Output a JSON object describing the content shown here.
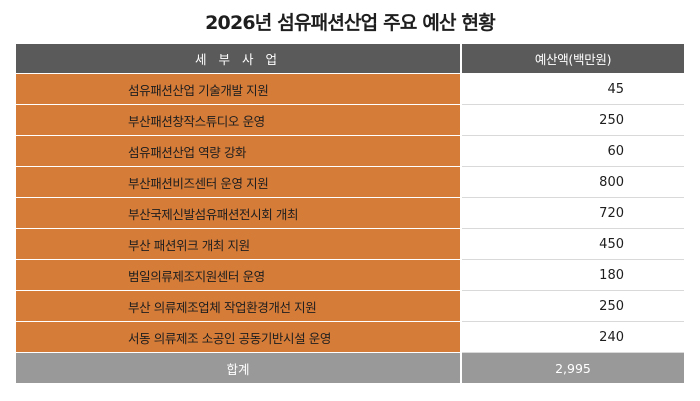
{
  "title": "2026년 섬유패션산업 주요 예산 현황",
  "table": {
    "headers": [
      "세 부 사 업",
      "예산액(백만원)"
    ],
    "rows": [
      {
        "name": "섬유패션산업 기술개발 지원",
        "budget": "45"
      },
      {
        "name": "부산패션창작스튜디오 운영",
        "budget": "250"
      },
      {
        "name": "섬유패션산업 역량 강화",
        "budget": "60"
      },
      {
        "name": "부산패션비즈센터 운영 지원",
        "budget": "800"
      },
      {
        "name": "부산국제신발섬유패션전시회 개최",
        "budget": "720"
      },
      {
        "name": "부산 패션위크 개최 지원",
        "budget": "450"
      },
      {
        "name": "범일의류제조지원센터 운영",
        "budget": "180"
      },
      {
        "name": "부산 의류제조업체 작업환경개선 지원",
        "budget": "250"
      },
      {
        "name": "서동 의류제조 소공인 공동기반시설 운영",
        "budget": "240"
      }
    ],
    "total": {
      "label": "합계",
      "budget": "2,995"
    }
  },
  "colors": {
    "header_bg": "#5a5a5a",
    "row_name_bg": "#d67c39",
    "total_bg": "#999999"
  }
}
